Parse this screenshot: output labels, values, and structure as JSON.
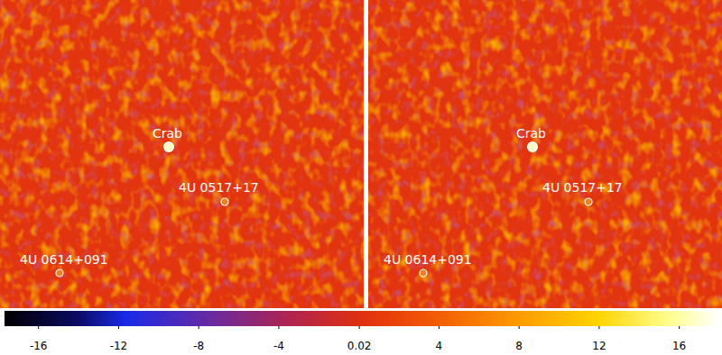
{
  "chart_data": {
    "type": "heatmap",
    "panels": [
      {
        "sources": [
          "Crab",
          "4U 0517+17",
          "4U 0614+091"
        ]
      },
      {
        "sources": [
          "Crab",
          "4U 0517+17",
          "4U 0614+091"
        ]
      }
    ],
    "color_range": [
      -17.7,
      18
    ],
    "color_ticks": [
      -16,
      -12,
      -8,
      -4,
      0.02,
      4,
      8,
      12,
      16
    ]
  }
}
